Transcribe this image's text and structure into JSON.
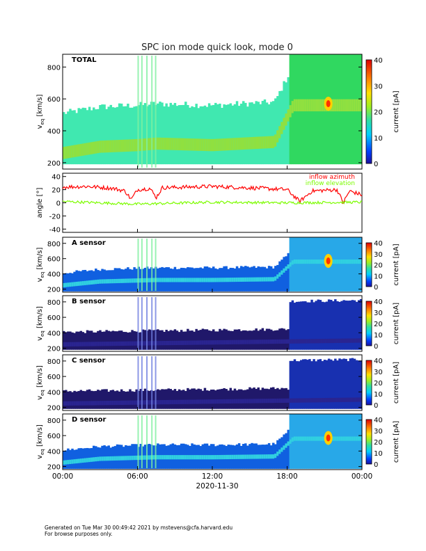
{
  "chart_data": {
    "type": "heatmap",
    "title": "SPC ion mode quick look, mode 0",
    "date_label": "2020-11-30",
    "x_ticks": [
      "00:00",
      "06:00",
      "12:00",
      "18:00",
      "00:00"
    ],
    "x_range_hours": [
      0,
      24
    ],
    "spectrograms": [
      {
        "label": "TOTAL",
        "ylabel": "v_eq [km/s]",
        "yticks": [
          200,
          400,
          600,
          800
        ],
        "ylim": [
          160,
          880
        ],
        "colorbar_label": "current [pA]",
        "colorbar_ticks": [
          0,
          10,
          20,
          30,
          40
        ],
        "style": "total",
        "core_speed_km_s": [
          [
            0,
            260
          ],
          [
            3,
            300
          ],
          [
            6,
            310
          ],
          [
            7.5,
            320
          ],
          [
            12,
            310
          ],
          [
            17,
            330
          ],
          [
            18.5,
            560
          ],
          [
            21,
            560
          ],
          [
            24,
            560
          ]
        ]
      },
      {
        "label": "A sensor",
        "ylabel": "v_eq [km/s]",
        "yticks": [
          200,
          400,
          600,
          800
        ],
        "ylim": [
          160,
          880
        ],
        "colorbar_label": "current [pA]",
        "colorbar_ticks": [
          0,
          10,
          20,
          30,
          40
        ],
        "style": "bright",
        "core_speed_km_s": [
          [
            0,
            250
          ],
          [
            3,
            300
          ],
          [
            7.5,
            320
          ],
          [
            12,
            320
          ],
          [
            17,
            330
          ],
          [
            18.5,
            560
          ],
          [
            24,
            560
          ]
        ]
      },
      {
        "label": "B sensor",
        "ylabel": "v_eq [km/s]",
        "yticks": [
          200,
          400,
          600,
          800
        ],
        "ylim": [
          160,
          880
        ],
        "colorbar_label": "current [pA]",
        "colorbar_ticks": [
          0,
          10,
          20,
          30,
          40
        ],
        "style": "dark",
        "core_speed_km_s": [
          [
            0,
            250
          ],
          [
            24,
            300
          ]
        ]
      },
      {
        "label": "C sensor",
        "ylabel": "v_eq [km/s]",
        "yticks": [
          200,
          400,
          600,
          800
        ],
        "ylim": [
          160,
          880
        ],
        "colorbar_label": "current [pA]",
        "colorbar_ticks": [
          0,
          10,
          20,
          30,
          40
        ],
        "style": "dark",
        "core_speed_km_s": [
          [
            0,
            250
          ],
          [
            24,
            300
          ]
        ]
      },
      {
        "label": "D sensor",
        "ylabel": "v_eq [km/s]",
        "yticks": [
          200,
          400,
          600,
          800
        ],
        "ylim": [
          160,
          880
        ],
        "colorbar_label": "current [pA]",
        "colorbar_ticks": [
          0,
          10,
          20,
          30,
          40
        ],
        "style": "bright",
        "core_speed_km_s": [
          [
            0,
            250
          ],
          [
            3,
            300
          ],
          [
            7.5,
            320
          ],
          [
            12,
            320
          ],
          [
            17,
            330
          ],
          [
            18.5,
            560
          ],
          [
            24,
            560
          ]
        ]
      }
    ],
    "angle_panel": {
      "ylabel": "angle [°]",
      "yticks": [
        -40,
        -20,
        0,
        20,
        40
      ],
      "ylim": [
        -45,
        45
      ],
      "series": [
        {
          "name": "inflow azimuth",
          "color": "#ff0000",
          "approx_deg": [
            [
              0,
              24
            ],
            [
              2,
              25
            ],
            [
              4,
              22
            ],
            [
              5,
              18
            ],
            [
              5.5,
              5
            ],
            [
              6,
              20
            ],
            [
              7,
              22
            ],
            [
              7.5,
              8
            ],
            [
              8,
              23
            ],
            [
              12,
              25
            ],
            [
              16,
              22
            ],
            [
              18,
              20
            ],
            [
              19,
              2
            ],
            [
              20,
              18
            ],
            [
              22,
              20
            ],
            [
              22.5,
              0
            ],
            [
              23,
              18
            ],
            [
              24,
              12
            ]
          ]
        },
        {
          "name": "inflow elevation",
          "color": "#7cfc00",
          "approx_deg": [
            [
              0,
              2
            ],
            [
              6,
              -2
            ],
            [
              12,
              1
            ],
            [
              18,
              0
            ],
            [
              24,
              1
            ]
          ]
        }
      ]
    }
  },
  "footer": {
    "line1": "Generated on Tue Mar 30 00:49:42 2021 by mstevens@cfa.harvard.edu",
    "line2": "For browse purposes only."
  }
}
